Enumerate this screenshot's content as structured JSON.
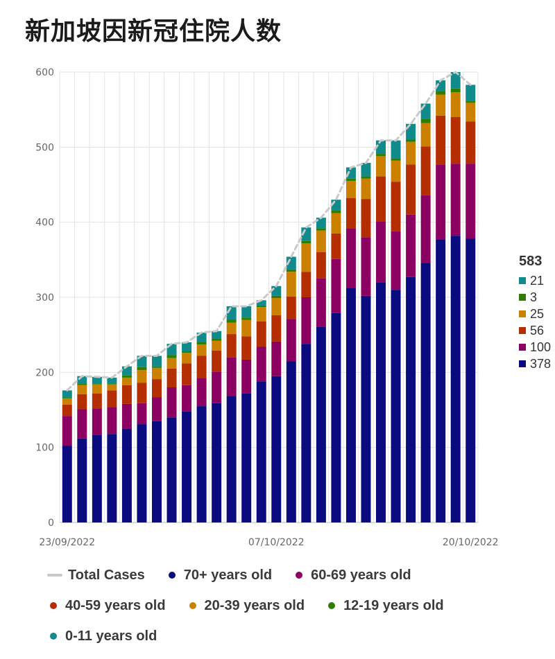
{
  "chart_data": {
    "type": "bar",
    "stacked": true,
    "title": "新加坡因新冠住院人数",
    "ylim": [
      0,
      600
    ],
    "yticks": [
      "0",
      "100",
      "200",
      "300",
      "400",
      "500",
      "600"
    ],
    "x_tick_labels": [
      {
        "index": 0,
        "label": "23/09/2022"
      },
      {
        "index": 14,
        "label": "07/10/2022"
      },
      {
        "index": 27,
        "label": "20/10/2022"
      }
    ],
    "categories": [
      "23/09/2022",
      "24/09/2022",
      "25/09/2022",
      "26/09/2022",
      "27/09/2022",
      "28/09/2022",
      "29/09/2022",
      "30/09/2022",
      "01/10/2022",
      "02/10/2022",
      "03/10/2022",
      "04/10/2022",
      "05/10/2022",
      "06/10/2022",
      "07/10/2022",
      "08/10/2022",
      "09/10/2022",
      "10/10/2022",
      "11/10/2022",
      "12/10/2022",
      "13/10/2022",
      "14/10/2022",
      "15/10/2022",
      "16/10/2022",
      "17/10/2022",
      "18/10/2022",
      "19/10/2022",
      "20/10/2022"
    ],
    "series": [
      {
        "name": "70+ years old",
        "color": "#0b0b80",
        "values": [
          102,
          112,
          117,
          118,
          125,
          131,
          135,
          140,
          148,
          155,
          159,
          168,
          172,
          188,
          195,
          215,
          238,
          261,
          279,
          312,
          302,
          320,
          310,
          327,
          346,
          377,
          382,
          378
        ]
      },
      {
        "name": "60-69 years old",
        "color": "#8b0060",
        "values": [
          40,
          39,
          35,
          36,
          33,
          28,
          32,
          40,
          35,
          37,
          42,
          52,
          45,
          46,
          46,
          56,
          62,
          64,
          72,
          80,
          78,
          81,
          78,
          83,
          90,
          100,
          96,
          100
        ]
      },
      {
        "name": "40-59 years old",
        "color": "#b52e00",
        "values": [
          15,
          20,
          20,
          22,
          25,
          27,
          24,
          25,
          29,
          30,
          28,
          31,
          31,
          34,
          35,
          30,
          34,
          35,
          34,
          40,
          51,
          60,
          66,
          67,
          65,
          65,
          62,
          56
        ]
      },
      {
        "name": "20-39 years old",
        "color": "#cc8000",
        "values": [
          8,
          12,
          12,
          8,
          10,
          17,
          15,
          14,
          14,
          15,
          13,
          15,
          22,
          19,
          23,
          33,
          38,
          29,
          27,
          23,
          27,
          27,
          28,
          30,
          31,
          28,
          33,
          25
        ]
      },
      {
        "name": "12-19 years old",
        "color": "#2e7d00",
        "values": [
          1,
          2,
          1,
          1,
          3,
          4,
          2,
          4,
          2,
          3,
          3,
          4,
          3,
          2,
          3,
          3,
          3,
          3,
          4,
          3,
          3,
          3,
          3,
          3,
          6,
          5,
          5,
          3
        ]
      },
      {
        "name": "0-11 years old",
        "color": "#108a8a",
        "values": [
          10,
          10,
          9,
          8,
          12,
          15,
          14,
          15,
          12,
          13,
          10,
          18,
          15,
          7,
          13,
          17,
          18,
          14,
          14,
          15,
          18,
          18,
          24,
          21,
          20,
          14,
          22,
          21
        ]
      }
    ],
    "total_series": {
      "name": "Total Cases",
      "color": "#c9c9c9",
      "values": [
        176,
        195,
        194,
        193,
        208,
        222,
        222,
        238,
        240,
        253,
        255,
        288,
        288,
        296,
        315,
        354,
        393,
        406,
        430,
        473,
        479,
        509,
        509,
        531,
        558,
        589,
        600,
        583
      ]
    },
    "side_legend": {
      "total": "583",
      "values": [
        "21",
        "3",
        "25",
        "56",
        "100",
        "378"
      ]
    }
  },
  "legend": {
    "total_cases": "Total Cases",
    "age_70": "70+ years old",
    "age_60": "60-69 years old",
    "age_40": "40-59 years old",
    "age_20": "20-39 years old",
    "age_12": "12-19 years old",
    "age_0": "0-11 years old"
  }
}
